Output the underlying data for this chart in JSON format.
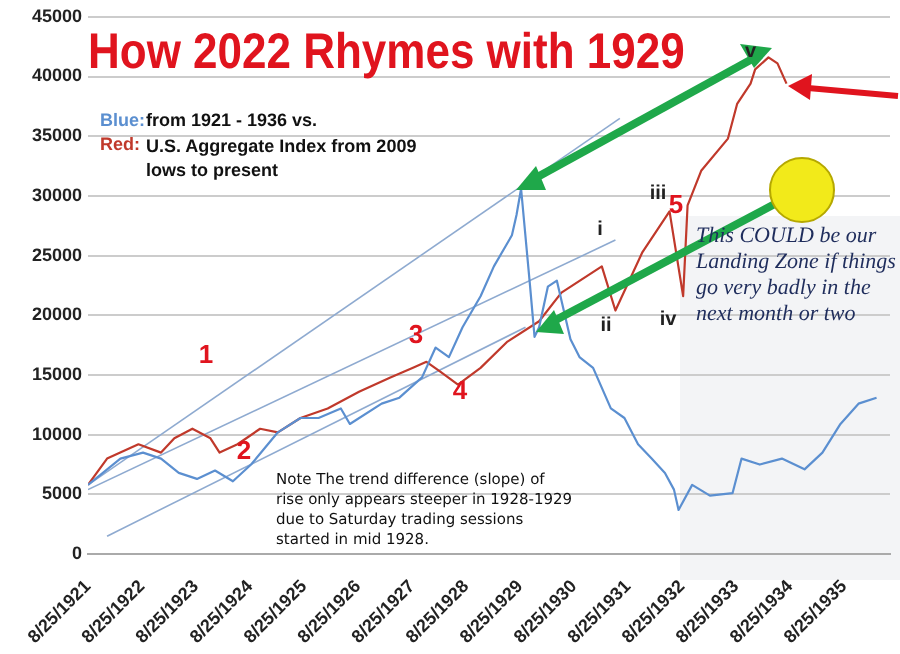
{
  "chart_data": {
    "type": "line",
    "title": "How 2022 Rhymes with 1929",
    "xlim": [
      "1921-08-25",
      "1936-07"
    ],
    "xticks": [
      {
        "value": "1921-08-25",
        "label": "8/25/1921"
      },
      {
        "value": "1922-08-25",
        "label": "8/25/1922"
      },
      {
        "value": "1923-08-25",
        "label": "8/25/1923"
      },
      {
        "value": "1924-08-25",
        "label": "8/25/1924"
      },
      {
        "value": "1925-08-25",
        "label": "8/25/1925"
      },
      {
        "value": "1926-08-25",
        "label": "8/25/1926"
      },
      {
        "value": "1927-08-25",
        "label": "8/25/1927"
      },
      {
        "value": "1928-08-25",
        "label": "8/25/1928"
      },
      {
        "value": "1929-08-25",
        "label": "8/25/1929"
      },
      {
        "value": "1930-08-25",
        "label": "8/25/1930"
      },
      {
        "value": "1931-08-25",
        "label": "8/25/1931"
      },
      {
        "value": "1932-08-25",
        "label": "8/25/1932"
      },
      {
        "value": "1933-08-25",
        "label": "8/25/1933"
      },
      {
        "value": "1934-08-25",
        "label": "8/25/1934"
      },
      {
        "value": "1935-08-25",
        "label": "8/25/1935"
      }
    ],
    "ylim": [
      0,
      45000
    ],
    "yticks": [
      0,
      5000,
      10000,
      15000,
      20000,
      25000,
      30000,
      35000,
      40000,
      45000
    ],
    "grid": "y",
    "legend": false,
    "marker": "none",
    "series": [
      {
        "color": "#5b8fd0",
        "x": [
          "1921-08-25",
          "1922-04",
          "1922-09",
          "1923-01",
          "1923-05",
          "1923-09",
          "1924-01",
          "1924-05",
          "1924-09",
          "1925-03",
          "1925-08",
          "1925-12",
          "1926-05",
          "1926-07",
          "1927-02",
          "1927-06",
          "1927-11",
          "1928-02",
          "1928-05",
          "1928-08",
          "1928-12",
          "1929-03",
          "1929-07",
          "1929-08",
          "1929-09",
          "1929-11",
          "1929-12",
          "1930-01",
          "1930-03",
          "1930-05",
          "1930-08",
          "1930-10",
          "1931-01",
          "1931-05",
          "1931-08",
          "1931-11",
          "1932-02",
          "1932-05",
          "1932-07",
          "1932-08",
          "1932-11",
          "1933-03",
          "1933-08",
          "1933-10",
          "1934-02",
          "1934-07",
          "1934-12",
          "1935-04",
          "1935-08",
          "1935-12",
          "1936-04"
        ],
        "values": [
          5800,
          8000,
          8500,
          8000,
          6800,
          6300,
          7000,
          6100,
          7500,
          10200,
          11400,
          11400,
          12200,
          10900,
          12600,
          13100,
          14800,
          17300,
          16500,
          19000,
          21600,
          24100,
          26700,
          28400,
          30600,
          22400,
          18200,
          19000,
          22400,
          22900,
          18000,
          16500,
          15600,
          12200,
          11400,
          9200,
          8000,
          6800,
          5400,
          3700,
          5800,
          4900,
          5100,
          8000,
          7500,
          8000,
          7100,
          8500,
          10900,
          12600,
          13100
        ]
      },
      {
        "color": "#c0392b",
        "x": [
          "1921-08-25",
          "1922-01",
          "1922-08",
          "1923-01",
          "1923-04",
          "1923-08",
          "1923-12",
          "1924-02",
          "1924-06",
          "1924-11",
          "1925-03",
          "1925-08",
          "1926-02",
          "1926-09",
          "1927-04",
          "1927-09",
          "1927-12",
          "1928-03",
          "1928-07",
          "1928-12",
          "1929-06",
          "1930-01",
          "1930-06",
          "1931-03",
          "1931-06",
          "1931-12",
          "1932-06",
          "1932-09",
          "1932-10",
          "1933-01",
          "1933-07",
          "1933-09",
          "1933-12",
          "1934-01",
          "1934-04",
          "1934-06",
          "1934-08"
        ],
        "values": [
          5800,
          8000,
          9200,
          8500,
          9700,
          10500,
          9700,
          8500,
          9200,
          10500,
          10200,
          11400,
          12200,
          13600,
          14800,
          15600,
          16100,
          15300,
          14200,
          15600,
          17800,
          19500,
          21900,
          24100,
          20400,
          25300,
          28700,
          21600,
          29200,
          32100,
          34800,
          37700,
          39400,
          40600,
          41600,
          41100,
          39400
        ]
      },
      {
        "type": "line",
        "color": "#8eaad0",
        "x": [
          "1921-08-25",
          "1931-07"
        ],
        "values": [
          5800,
          36500
        ]
      },
      {
        "type": "line",
        "color": "#8eaad0",
        "x": [
          "1921-08-25",
          "1931-06"
        ],
        "values": [
          5400,
          26300
        ]
      },
      {
        "type": "line",
        "color": "#8eaad0",
        "x": [
          "1922-01",
          "1929-10"
        ],
        "values": [
          1500,
          19000
        ]
      }
    ],
    "annotations": [
      "1",
      "2",
      "3",
      "4",
      "5",
      "i",
      "ii",
      "iii",
      "iv",
      {
        "text": "v",
        "x": "1934-04",
        "y": 41600
      },
      "Blue:",
      "from 1921 - 1936 vs.",
      "Red:",
      "U.S. Aggregate Index from 2009 lows to present",
      "Note The trend difference (slope) of rise only appears steeper in 1928-1929 due to Saturday trading sessions started in mid 1928.",
      "This COULD be our Landing Zone if things go very badly in the next month or two"
    ]
  }
}
